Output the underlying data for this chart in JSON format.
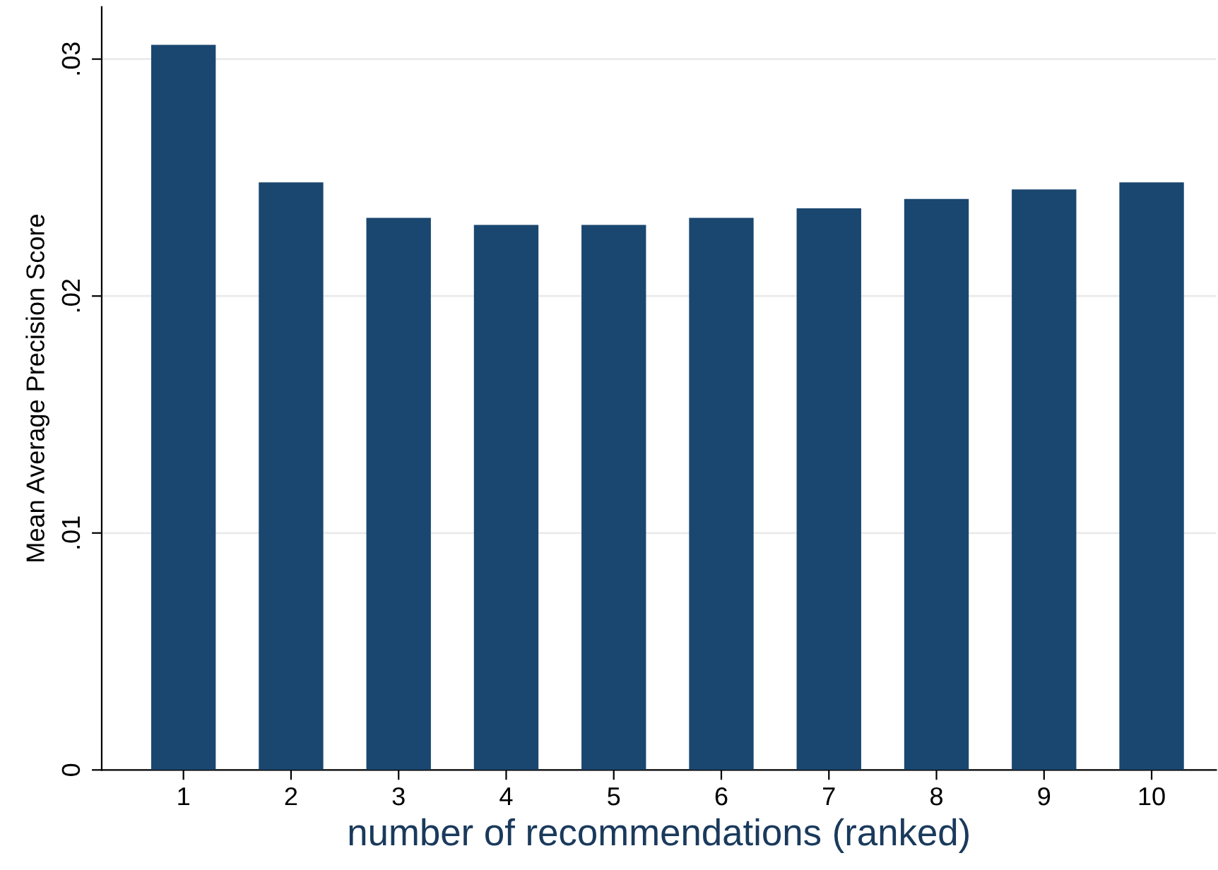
{
  "chart_data": {
    "type": "bar",
    "xlabel": "number of recommendations (ranked)",
    "ylabel": "Mean Average Precision Score",
    "categories": [
      "1",
      "2",
      "3",
      "4",
      "5",
      "6",
      "7",
      "8",
      "9",
      "10"
    ],
    "values": [
      0.0306,
      0.0248,
      0.0233,
      0.023,
      0.023,
      0.0233,
      0.0237,
      0.0241,
      0.0245,
      0.0248
    ],
    "color": "#1a476f",
    "ylim": [
      0,
      0.0322
    ],
    "yticks": [
      0,
      {
        "value": 0.01,
        "label": ".01"
      },
      {
        "value": 0.02,
        "label": ".02"
      },
      {
        "value": 0.03,
        "label": ".03"
      }
    ],
    "grid": "y"
  }
}
